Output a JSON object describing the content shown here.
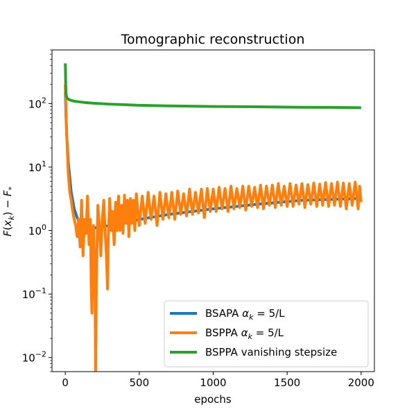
{
  "chart_data": {
    "type": "line",
    "title": "Tomographic reconstruction",
    "xlabel": "epochs",
    "ylabel": "F(x_k) − F_*",
    "ylabel_parts": {
      "F": "F",
      "open": "(",
      "x": "x",
      "k": "k",
      "close": ")",
      "minus": " − ",
      "F2": "F",
      "star": "*"
    },
    "xscale": "linear",
    "yscale": "log",
    "xlim": [
      -90,
      2090
    ],
    "ylim": [
      0.006,
      700
    ],
    "xticks": [
      0,
      500,
      1000,
      1500,
      2000
    ],
    "xtick_labels": [
      "0",
      "500",
      "1000",
      "1500",
      "2000"
    ],
    "yticks": [
      0.01,
      0.1,
      1,
      10,
      100
    ],
    "ytick_labels": [
      {
        "base": "10",
        "exp": "−2"
      },
      {
        "base": "10",
        "exp": "−1"
      },
      {
        "base": "10",
        "exp": "0"
      },
      {
        "base": "10",
        "exp": "1"
      },
      {
        "base": "10",
        "exp": "2"
      }
    ],
    "legend_position": "lower-right",
    "series": [
      {
        "name": "BSAPA α_k = 5/L",
        "label_parts": {
          "prefix": "BSAPA ",
          "alpha": "α",
          "sub": "k",
          "suffix": " = 5/L"
        },
        "color": "#1f77b4",
        "points": [
          [
            0,
            150
          ],
          [
            5,
            60
          ],
          [
            10,
            30
          ],
          [
            20,
            12
          ],
          [
            40,
            4
          ],
          [
            60,
            2.2
          ],
          [
            80,
            1.6
          ],
          [
            100,
            1.3
          ],
          [
            150,
            1.1
          ],
          [
            200,
            1.1
          ],
          [
            250,
            1.15
          ],
          [
            300,
            1.2
          ],
          [
            350,
            1.25
          ],
          [
            400,
            1.3
          ],
          [
            500,
            1.5
          ],
          [
            700,
            1.8
          ],
          [
            1000,
            2.2
          ],
          [
            1300,
            2.6
          ],
          [
            1600,
            3.0
          ],
          [
            1800,
            3.1
          ],
          [
            2000,
            3.2
          ]
        ]
      },
      {
        "name": "BSPPA α_k = 5/L",
        "label_parts": {
          "prefix": "BSPPA ",
          "alpha": "α",
          "sub": "k",
          "suffix": " = 5/L"
        },
        "color": "#ff7f0e",
        "points": [
          [
            0,
            200
          ],
          [
            5,
            70
          ],
          [
            10,
            30
          ],
          [
            15,
            15
          ],
          [
            20,
            8
          ],
          [
            30,
            4
          ],
          [
            40,
            3
          ],
          [
            50,
            2
          ],
          [
            60,
            1.5
          ],
          [
            70,
            1.2
          ],
          [
            80,
            0.8
          ],
          [
            90,
            1.5
          ],
          [
            100,
            0.55
          ],
          [
            110,
            3.0
          ],
          [
            120,
            0.4
          ],
          [
            130,
            1.5
          ],
          [
            140,
            0.9
          ],
          [
            150,
            3.5
          ],
          [
            160,
            0.6
          ],
          [
            170,
            1.5
          ],
          [
            175,
            0.13
          ],
          [
            180,
            0.05
          ],
          [
            185,
            0.3
          ],
          [
            190,
            1.2
          ],
          [
            195,
            0.5
          ],
          [
            200,
            0.15
          ],
          [
            205,
            0.006
          ],
          [
            210,
            0.15
          ],
          [
            215,
            0.6
          ],
          [
            220,
            2.5
          ],
          [
            230,
            1.2
          ],
          [
            240,
            0.4
          ],
          [
            250,
            1.5
          ],
          [
            260,
            3.0
          ],
          [
            270,
            0.9
          ],
          [
            280,
            0.3
          ],
          [
            285,
            0.12
          ],
          [
            290,
            0.7
          ],
          [
            300,
            3.2
          ],
          [
            310,
            1.0
          ],
          [
            320,
            2.0
          ],
          [
            330,
            0.6
          ],
          [
            340,
            2.8
          ],
          [
            350,
            1.0
          ],
          [
            360,
            3.5
          ],
          [
            370,
            1.0
          ],
          [
            380,
            2.5
          ],
          [
            390,
            0.9
          ],
          [
            400,
            3.6
          ],
          [
            410,
            1.3
          ],
          [
            420,
            3.0
          ],
          [
            430,
            0.8
          ],
          [
            440,
            3.2
          ],
          [
            450,
            1.3
          ],
          [
            460,
            3.0
          ],
          [
            470,
            1.0
          ],
          [
            480,
            3.8
          ],
          [
            500,
            1.2
          ],
          [
            520,
            3.5
          ],
          [
            540,
            1.3
          ],
          [
            560,
            4.0
          ],
          [
            580,
            1.5
          ],
          [
            600,
            3.5
          ],
          [
            620,
            1.2
          ],
          [
            640,
            4.0
          ],
          [
            660,
            1.5
          ],
          [
            680,
            3.8
          ],
          [
            700,
            1.6
          ],
          [
            720,
            4.0
          ],
          [
            740,
            1.5
          ],
          [
            760,
            4.2
          ],
          [
            780,
            1.8
          ],
          [
            800,
            3.8
          ],
          [
            820,
            1.7
          ],
          [
            840,
            4.5
          ],
          [
            860,
            1.8
          ],
          [
            880,
            4.0
          ],
          [
            900,
            1.9
          ],
          [
            920,
            4.5
          ],
          [
            940,
            1.6
          ],
          [
            960,
            4.6
          ],
          [
            980,
            2.0
          ],
          [
            1000,
            4.5
          ],
          [
            1020,
            2.0
          ],
          [
            1040,
            4.8
          ],
          [
            1060,
            2.2
          ],
          [
            1080,
            4.6
          ],
          [
            1100,
            2.0
          ],
          [
            1120,
            5.0
          ],
          [
            1140,
            2.2
          ],
          [
            1160,
            4.6
          ],
          [
            1180,
            2.3
          ],
          [
            1200,
            5.0
          ],
          [
            1220,
            2.1
          ],
          [
            1240,
            5.0
          ],
          [
            1260,
            2.4
          ],
          [
            1280,
            4.8
          ],
          [
            1300,
            2.3
          ],
          [
            1320,
            5.2
          ],
          [
            1340,
            2.2
          ],
          [
            1360,
            5.0
          ],
          [
            1380,
            2.5
          ],
          [
            1400,
            5.2
          ],
          [
            1420,
            2.3
          ],
          [
            1440,
            5.5
          ],
          [
            1460,
            2.5
          ],
          [
            1480,
            5.0
          ],
          [
            1500,
            2.4
          ],
          [
            1520,
            5.5
          ],
          [
            1540,
            2.4
          ],
          [
            1560,
            5.2
          ],
          [
            1580,
            2.6
          ],
          [
            1600,
            5.5
          ],
          [
            1620,
            2.3
          ],
          [
            1640,
            5.3
          ],
          [
            1660,
            2.6
          ],
          [
            1680,
            5.6
          ],
          [
            1700,
            2.4
          ],
          [
            1720,
            5.4
          ],
          [
            1740,
            2.5
          ],
          [
            1760,
            5.7
          ],
          [
            1780,
            2.4
          ],
          [
            1800,
            5.5
          ],
          [
            1820,
            2.5
          ],
          [
            1840,
            5.8
          ],
          [
            1860,
            2.4
          ],
          [
            1880,
            5.6
          ],
          [
            1900,
            2.2
          ],
          [
            1920,
            5.5
          ],
          [
            1940,
            2.5
          ],
          [
            1960,
            5.8
          ],
          [
            1980,
            2.2
          ],
          [
            1990,
            5.0
          ],
          [
            2000,
            2.8
          ]
        ]
      },
      {
        "name": "BSPPA vanishing stepsize",
        "label_parts": {
          "prefix": "BSPPA vanishing stepsize",
          "alpha": "",
          "sub": "",
          "suffix": ""
        },
        "color": "#2ca02c",
        "points": [
          [
            0,
            430
          ],
          [
            1,
            350
          ],
          [
            2,
            250
          ],
          [
            3,
            180
          ],
          [
            5,
            140
          ],
          [
            10,
            125
          ],
          [
            20,
            117
          ],
          [
            40,
            112
          ],
          [
            60,
            109
          ],
          [
            100,
            106
          ],
          [
            150,
            103
          ],
          [
            200,
            101
          ],
          [
            300,
            98
          ],
          [
            400,
            96
          ],
          [
            500,
            94
          ],
          [
            700,
            92
          ],
          [
            1000,
            90
          ],
          [
            1300,
            89
          ],
          [
            1600,
            87.5
          ],
          [
            1800,
            87
          ],
          [
            2000,
            86
          ]
        ]
      }
    ]
  }
}
